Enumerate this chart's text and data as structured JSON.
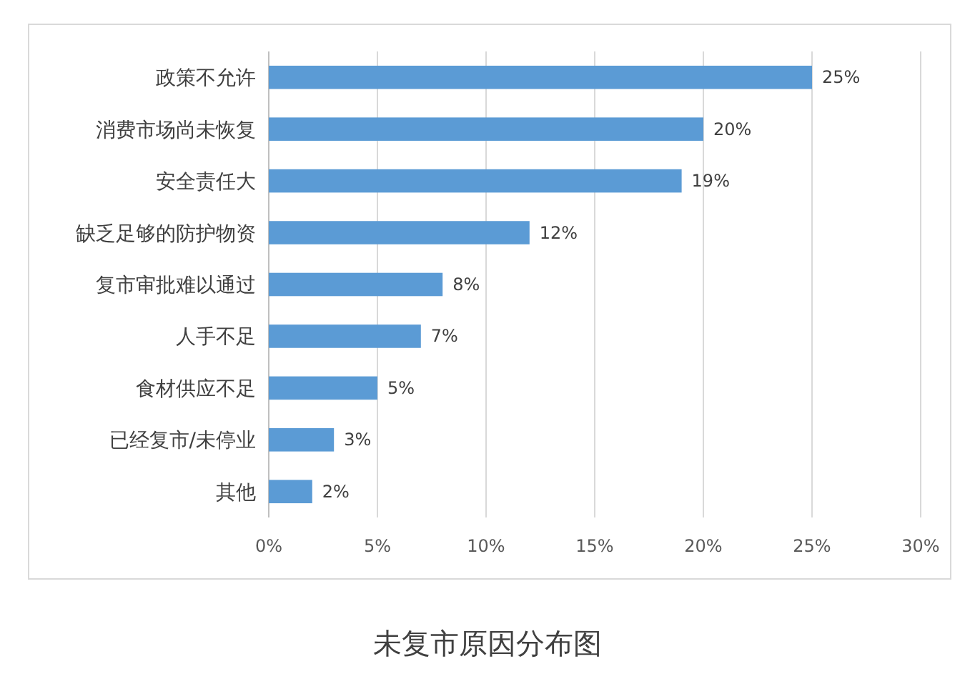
{
  "chart_data": {
    "type": "bar",
    "orientation": "horizontal",
    "title": "未复市原因分布图",
    "categories": [
      "政策不允许",
      "消费市场尚未恢复",
      "安全责任大",
      "缺乏足够的防护物资",
      "复市审批难以通过",
      "人手不足",
      "食材供应不足",
      "已经复市/未停业",
      "其他"
    ],
    "values": [
      25,
      20,
      19,
      12,
      8,
      7,
      5,
      3,
      2
    ],
    "value_labels": [
      "25%",
      "20%",
      "19%",
      "12%",
      "8%",
      "7%",
      "5%",
      "3%",
      "2%"
    ],
    "color": "#5b9bd5",
    "xlim": [
      0,
      30
    ],
    "xticks": [
      {
        "value": 0,
        "label": "0%"
      },
      {
        "value": 5,
        "label": "5%"
      },
      {
        "value": 10,
        "label": "10%"
      },
      {
        "value": 15,
        "label": "15%"
      },
      {
        "value": 20,
        "label": "20%"
      },
      {
        "value": 25,
        "label": "25%"
      },
      {
        "value": 30,
        "label": "30%"
      }
    ],
    "grid": "x"
  }
}
